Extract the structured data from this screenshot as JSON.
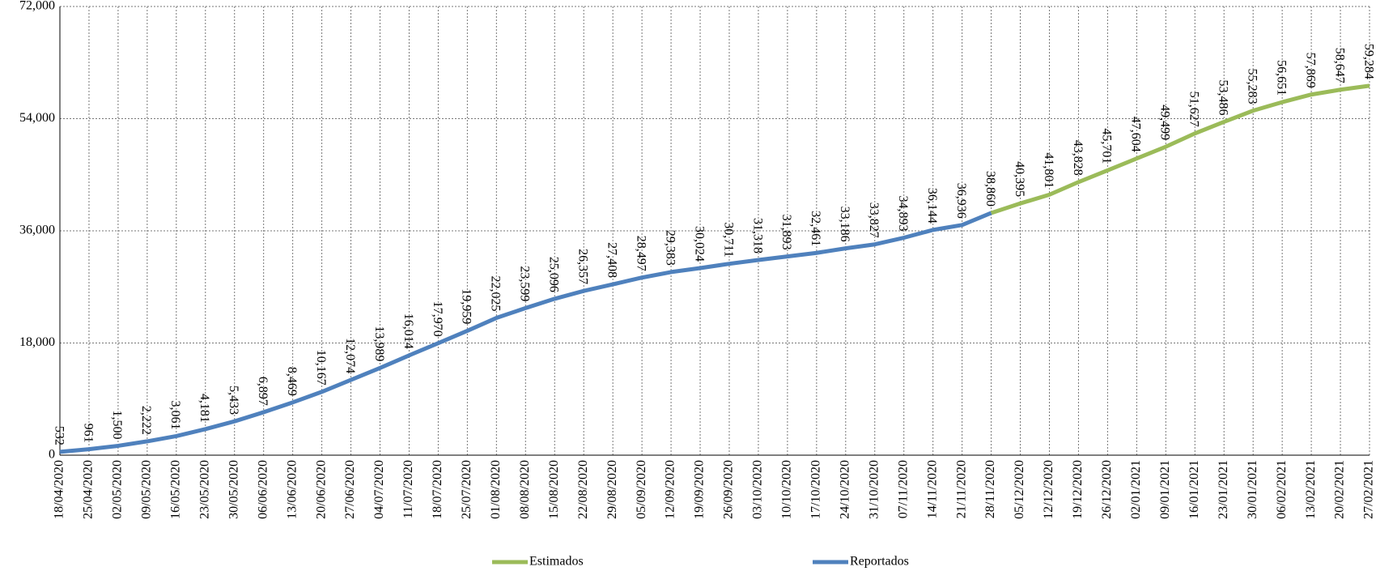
{
  "chart_data": {
    "type": "line",
    "categories": [
      "18/04/2020",
      "25/04/2020",
      "02/05/2020",
      "09/05/2020",
      "16/05/2020",
      "23/05/2020",
      "30/05/2020",
      "06/06/2020",
      "13/06/2020",
      "20/06/2020",
      "27/06/2020",
      "04/07/2020",
      "11/07/2020",
      "18/07/2020",
      "25/07/2020",
      "01/08/2020",
      "08/08/2020",
      "15/08/2020",
      "22/08/2020",
      "29/08/2020",
      "05/09/2020",
      "12/09/2020",
      "19/09/2020",
      "26/09/2020",
      "03/10/2020",
      "10/10/2020",
      "17/10/2020",
      "24/10/2020",
      "31/10/2020",
      "07/11/2020",
      "14/11/2020",
      "21/11/2020",
      "28/11/2020",
      "05/12/2020",
      "12/12/2020",
      "19/12/2020",
      "26/12/2020",
      "02/01/2021",
      "09/01/2021",
      "16/01/2021",
      "23/01/2021",
      "30/01/2021",
      "06/02/2021",
      "13/02/2021",
      "20/02/2021",
      "27/02/2021"
    ],
    "series": [
      {
        "name": "Estimados",
        "color": "#9bbb59",
        "values": [
          null,
          null,
          null,
          null,
          null,
          null,
          null,
          null,
          null,
          null,
          null,
          null,
          null,
          null,
          null,
          null,
          null,
          null,
          null,
          null,
          null,
          null,
          null,
          null,
          null,
          null,
          null,
          null,
          null,
          null,
          null,
          null,
          38860,
          40395,
          41801,
          43828,
          45701,
          47604,
          49499,
          51627,
          53486,
          55283,
          56651,
          57869,
          58647,
          59284
        ],
        "value_labels": [
          null,
          null,
          null,
          null,
          null,
          null,
          null,
          null,
          null,
          null,
          null,
          null,
          null,
          null,
          null,
          null,
          null,
          null,
          null,
          null,
          null,
          null,
          null,
          null,
          null,
          null,
          null,
          null,
          null,
          null,
          null,
          null,
          null,
          "40,395",
          "41,801",
          "43,828",
          "45,701",
          "47,604",
          "49,499",
          "51,627",
          "53,486",
          "55,283",
          "56,651",
          "57,869",
          "58,647",
          "59,284"
        ]
      },
      {
        "name": "Reportados",
        "color": "#4f81bd",
        "values": [
          532,
          961,
          1500,
          2222,
          3061,
          4181,
          5433,
          6897,
          8469,
          10167,
          12074,
          13989,
          16014,
          17970,
          19959,
          22025,
          23599,
          25096,
          26357,
          27408,
          28497,
          29383,
          30024,
          30711,
          31318,
          31893,
          32461,
          33186,
          33827,
          34893,
          36144,
          36936,
          38860,
          null,
          null,
          null,
          null,
          null,
          null,
          null,
          null,
          null,
          null,
          null,
          null,
          null
        ],
        "value_labels": [
          "532",
          "961",
          "1,500",
          "2,222",
          "3,061",
          "4,181",
          "5,433",
          "6,897",
          "8,469",
          "10,167",
          "12,074",
          "13,989",
          "16,014",
          "17,970",
          "19,959",
          "22,025",
          "23,599",
          "25,096",
          "26,357",
          "27,408",
          "28,497",
          "29,383",
          "30,024",
          "30,711",
          "31,318",
          "31,893",
          "32,461",
          "33,186",
          "33,827",
          "34,893",
          "36,144",
          "36,936",
          "38,860",
          null,
          null,
          null,
          null,
          null,
          null,
          null,
          null,
          null,
          null,
          null,
          null,
          null
        ]
      }
    ],
    "ylim": [
      0,
      72000
    ],
    "yticks": [
      0,
      {
        "value": 18000,
        "label": "18,000"
      },
      {
        "value": 36000,
        "label": "36,000"
      },
      {
        "value": 54000,
        "label": "54,000"
      },
      {
        "value": 72000,
        "label": "72,000"
      }
    ],
    "grid": true,
    "legend": "bottom"
  }
}
